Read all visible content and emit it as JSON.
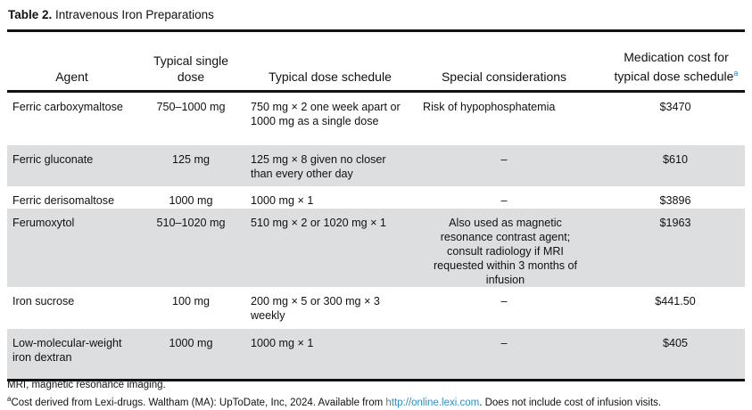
{
  "title": {
    "label": "Table 2.",
    "text": "Intravenous Iron Preparations"
  },
  "columns": [
    "Agent",
    "Typical single dose",
    "Typical dose schedule",
    "Special considerations",
    "Medication cost for typical dose schedule"
  ],
  "footnote_mark": "a",
  "rows": [
    {
      "agent": "Ferric carboxymaltose",
      "dose": "750–1000 mg",
      "schedule": "750 mg × 2 one week apart or 1000 mg as a single dose",
      "special": "Risk of hypophosphatemia",
      "cost": "$3470"
    },
    {
      "agent": "Ferric gluconate",
      "dose": "125 mg",
      "schedule": "125 mg × 8 given no closer than every other day",
      "special": "–",
      "cost": "$610"
    },
    {
      "agent": "Ferric derisomaltose",
      "dose": "1000 mg",
      "schedule": "1000 mg × 1",
      "special": "–",
      "cost": "$3896"
    },
    {
      "agent": "Ferumoxytol",
      "dose": "510–1020 mg",
      "schedule": "510 mg × 2 or 1020 mg × 1",
      "special": "Also used as magnetic resonance contrast agent; consult radiology if MRI requested within 3 months of infusion",
      "cost": "$1963"
    },
    {
      "agent": "Iron sucrose",
      "dose": "100 mg",
      "schedule": "200 mg × 5 or 300 mg × 3 weekly",
      "special": "–",
      "cost": "$441.50"
    },
    {
      "agent": "Low-molecular-weight iron dextran",
      "dose": "1000 mg",
      "schedule": "1000 mg × 1",
      "special": "–",
      "cost": "$405"
    }
  ],
  "notes": {
    "abbrev": "MRI, magnetic resonance imaging.",
    "mark": "a",
    "cost_pre": "Cost derived from Lexi-drugs. Waltham (MA): UpToDate, Inc, 2024. Available from ",
    "link": "http://online.lexi.com",
    "cost_post": ". Does not include cost of infusion visits."
  },
  "colors": {
    "row_shade": "#dddee0",
    "link": "#2a8fc7"
  }
}
